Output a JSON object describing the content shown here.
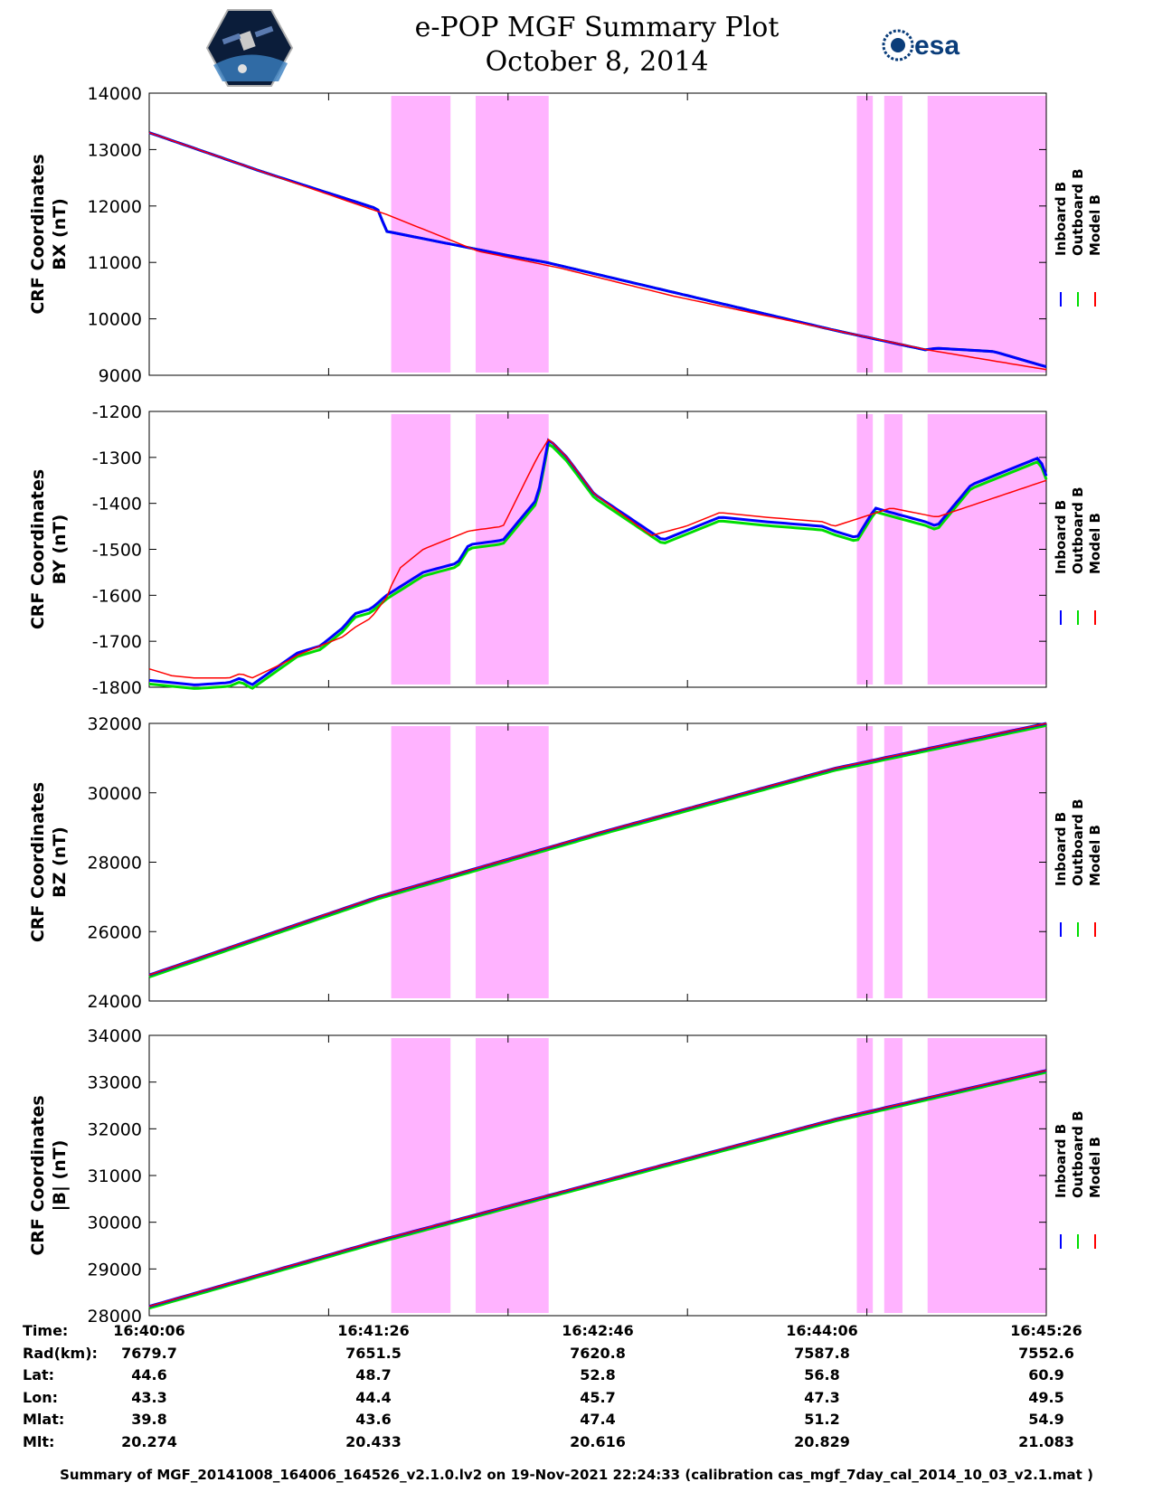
{
  "title": "e-POP MGF Summary Plot",
  "date": "October 8, 2014",
  "logos": {
    "left": "cassiope-satellite-logo",
    "right": "esa-logo",
    "right_text": "esa"
  },
  "colors": {
    "inboard": "#0000ff",
    "outboard": "#00dd00",
    "model": "#ff0000",
    "shading": "#ff99ff"
  },
  "legend": [
    "Inboard B",
    "Outboard B",
    "Model B"
  ],
  "shaded_intervals_s": [
    [
      106,
      132
    ],
    [
      143,
      175
    ],
    [
      310,
      317
    ],
    [
      322,
      330
    ],
    [
      341,
      393
    ]
  ],
  "time_range_s": [
    0,
    393
  ],
  "chart_data": [
    {
      "type": "line",
      "ylabel_line1": "CRF Coordinates",
      "ylabel_line2": "BX (nT)",
      "ylim": [
        9000,
        14000
      ],
      "yticks": [
        9000,
        10000,
        11000,
        12000,
        13000,
        14000
      ],
      "x_unit": "seconds after 16:40:06",
      "model": {
        "x": [
          0,
          50,
          104,
          144,
          180,
          230,
          300,
          341,
          393
        ],
        "y": [
          13300,
          12600,
          11850,
          11200,
          10900,
          10400,
          9800,
          9450,
          9100
        ]
      },
      "measured": {
        "x": [
          0,
          50,
          100,
          104,
          160,
          174,
          300,
          340,
          345,
          370,
          393
        ],
        "y": [
          13300,
          12600,
          11950,
          11550,
          11100,
          11000,
          9800,
          9450,
          9480,
          9420,
          9150
        ]
      }
    },
    {
      "type": "line",
      "ylabel_line1": "CRF Coordinates",
      "ylabel_line2": "BY (nT)",
      "ylim": [
        -1800,
        -1200
      ],
      "yticks": [
        -1800,
        -1700,
        -1600,
        -1500,
        -1400,
        -1300,
        -1200
      ],
      "x_unit": "seconds after 16:40:06",
      "model": {
        "x": [
          0,
          10,
          20,
          35,
          40,
          45,
          60,
          65,
          70,
          75,
          85,
          90,
          97,
          104,
          106,
          110,
          120,
          140,
          155,
          170,
          175,
          183,
          195,
          220,
          235,
          250,
          270,
          295,
          300,
          325,
          345,
          393
        ],
        "y": [
          -1760,
          -1775,
          -1780,
          -1780,
          -1770,
          -1780,
          -1745,
          -1730,
          -1720,
          -1710,
          -1690,
          -1670,
          -1650,
          -1605,
          -1580,
          -1540,
          -1500,
          -1460,
          -1450,
          -1300,
          -1260,
          -1300,
          -1380,
          -1470,
          -1450,
          -1420,
          -1430,
          -1440,
          -1450,
          -1410,
          -1430,
          -1350
        ]
      },
      "measured": {
        "x": [
          0,
          10,
          20,
          35,
          40,
          45,
          55,
          65,
          75,
          85,
          90,
          97,
          104,
          120,
          135,
          140,
          155,
          170,
          175,
          183,
          195,
          225,
          235,
          250,
          270,
          295,
          300,
          310,
          318,
          325,
          340,
          345,
          360,
          385,
          390,
          393
        ],
        "y": [
          -1785,
          -1790,
          -1795,
          -1790,
          -1780,
          -1795,
          -1760,
          -1725,
          -1710,
          -1670,
          -1640,
          -1630,
          -1600,
          -1550,
          -1530,
          -1490,
          -1480,
          -1390,
          -1260,
          -1300,
          -1380,
          -1480,
          -1460,
          -1430,
          -1440,
          -1450,
          -1460,
          -1475,
          -1410,
          -1420,
          -1440,
          -1450,
          -1360,
          -1310,
          -1300,
          -1340
        ]
      },
      "outboard_offset": -8
    },
    {
      "type": "line",
      "ylabel_line1": "CRF Coordinates",
      "ylabel_line2": "BZ (nT)",
      "ylim": [
        24000,
        32000
      ],
      "yticks": [
        24000,
        26000,
        28000,
        30000,
        32000
      ],
      "x_unit": "seconds after 16:40:06",
      "model": {
        "x": [
          0,
          100,
          200,
          300,
          393
        ],
        "y": [
          24750,
          27000,
          28900,
          30700,
          32000
        ]
      },
      "measured": {
        "x": [
          0,
          100,
          200,
          300,
          393
        ],
        "y": [
          24750,
          27000,
          28900,
          30700,
          32000
        ]
      },
      "outboard_offset": -60
    },
    {
      "type": "line",
      "ylabel_line1": "CRF Coordinates",
      "ylabel_line2": "|B| (nT)",
      "ylim": [
        28000,
        34000
      ],
      "yticks": [
        28000,
        29000,
        30000,
        31000,
        32000,
        33000,
        34000
      ],
      "x_unit": "seconds after 16:40:06",
      "model": {
        "x": [
          0,
          100,
          200,
          300,
          393
        ],
        "y": [
          28200,
          29600,
          30900,
          32200,
          33250
        ]
      },
      "measured": {
        "x": [
          0,
          100,
          200,
          300,
          393
        ],
        "y": [
          28200,
          29600,
          30900,
          32200,
          33250
        ]
      },
      "outboard_offset": -40
    }
  ],
  "ephemeris": {
    "labels": [
      "Time:",
      "Rad(km):",
      "Lat:",
      "Lon:",
      "Mlat:",
      "Mlt:"
    ],
    "columns": [
      {
        "t": 0,
        "values": [
          "16:40:06",
          "7679.7",
          "44.6",
          "43.3",
          "39.8",
          "20.274"
        ]
      },
      {
        "t": 100,
        "values": [
          "16:41:26",
          "7651.5",
          "48.7",
          "44.4",
          "43.6",
          "20.433"
        ]
      },
      {
        "t": 200,
        "values": [
          "16:42:46",
          "7620.8",
          "52.8",
          "45.7",
          "47.4",
          "20.616"
        ]
      },
      {
        "t": 300,
        "values": [
          "16:44:06",
          "7587.8",
          "56.8",
          "47.3",
          "51.2",
          "20.829"
        ]
      },
      {
        "t": 400,
        "values": [
          "16:45:26",
          "7552.6",
          "60.9",
          "49.5",
          "54.9",
          "21.083"
        ]
      }
    ]
  },
  "footer": "Summary of MGF_20141008_164006_164526_v2.1.0.lv2 on 19-Nov-2021 22:24:33 (calibration cas_mgf_7day_cal_2014_10_03_v2.1.mat )"
}
